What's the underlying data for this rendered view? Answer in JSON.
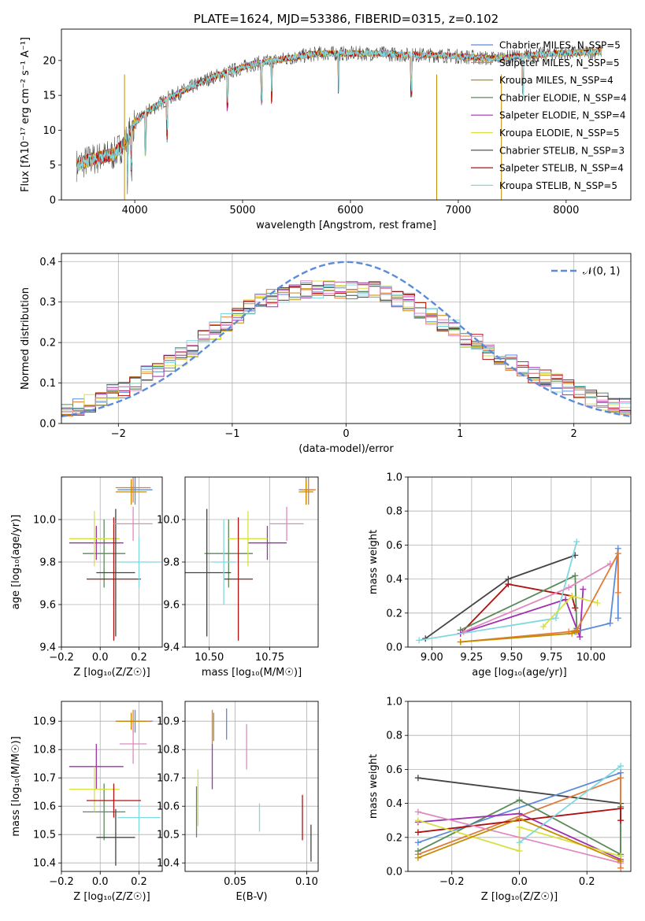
{
  "chart_data": [
    {
      "type": "line",
      "title": "PLATE=1624, MJD=53386, FIBERID=0315, z=0.102",
      "xlabel": "wavelength [Angstrom, rest frame]",
      "ylabel": "Flux [fλ10⁻¹⁷ erg cm⁻² s⁻¹ A⁻¹]",
      "xlim": [
        3320,
        8600
      ],
      "ylim": [
        0,
        24.5
      ],
      "xticks": [
        "4000",
        "5000",
        "6000",
        "7000",
        "8000"
      ],
      "yticks": [
        "0",
        "5",
        "10",
        "15",
        "20"
      ],
      "legend": "right",
      "series": [
        {
          "name": "Chabrier MILES, N_SSP=5",
          "color": "#5B8BD9"
        },
        {
          "name": "Salpeter MILES, N_SSP=5",
          "color": "#E07B39"
        },
        {
          "name": "Kroupa MILES, N_SSP=4",
          "color": "#C58B00"
        },
        {
          "name": "Chabrier ELODIE, N_SSP=4",
          "color": "#5A8A5A"
        },
        {
          "name": "Salpeter ELODIE, N_SSP=4",
          "color": "#A030B0"
        },
        {
          "name": "Kroupa ELODIE, N_SSP=5",
          "color": "#D8E040"
        },
        {
          "name": "Chabrier STELIB, N_SSP=3",
          "color": "#444444"
        },
        {
          "name": "Salpeter STELIB, N_SSP=4",
          "color": "#B01010"
        },
        {
          "name": "Kroupa STELIB, N_SSP=5",
          "color": "#7FD8E0"
        }
      ],
      "continuum": {
        "x": [
          3460,
          3600,
          3800,
          3900,
          4000,
          4100,
          4300,
          4500,
          4700,
          4900,
          5100,
          5300,
          5500,
          5700,
          5900,
          6100,
          6300,
          6500,
          6700,
          6900,
          7100,
          7300,
          7500,
          7700,
          7900,
          8100,
          8300
        ],
        "y": [
          5.0,
          5.8,
          6.5,
          8.0,
          11.0,
          12.5,
          14.5,
          16.0,
          17.5,
          18.5,
          19.5,
          20.0,
          20.5,
          21.0,
          21.0,
          21.0,
          21.0,
          20.8,
          20.8,
          20.7,
          20.5,
          20.3,
          20.5,
          20.8,
          21.0,
          21.1,
          21.3
        ]
      }
    },
    {
      "type": "histogram",
      "xlabel": "(data-model)/error",
      "ylabel": "Normed distribution",
      "xlim": [
        -2.5,
        2.5
      ],
      "ylim": [
        0,
        0.42
      ],
      "xticks": [
        "−2",
        "−1",
        "0",
        "1",
        "2"
      ],
      "yticks": [
        "0.0",
        "0.1",
        "0.2",
        "0.3",
        "0.4"
      ],
      "legend": "top-right",
      "reference_curve": {
        "name": "𝒩(0, 1)",
        "color": "#5B8BD9"
      },
      "bin_width": 0.1,
      "x_start": -2.5,
      "envelope": [
        0.035,
        0.04,
        0.05,
        0.06,
        0.075,
        0.085,
        0.1,
        0.12,
        0.135,
        0.15,
        0.165,
        0.185,
        0.21,
        0.23,
        0.25,
        0.27,
        0.285,
        0.3,
        0.31,
        0.32,
        0.325,
        0.33,
        0.33,
        0.33,
        0.33,
        0.33,
        0.33,
        0.33,
        0.32,
        0.31,
        0.3,
        0.28,
        0.265,
        0.25,
        0.235,
        0.21,
        0.2,
        0.18,
        0.165,
        0.15,
        0.135,
        0.12,
        0.11,
        0.1,
        0.09,
        0.075,
        0.065,
        0.055,
        0.05,
        0.04
      ]
    },
    {
      "type": "scatter",
      "xlabel": "Z [log₁₀(Z/Z☉)]",
      "ylabel": "age  [log₁₀(age/yr)]",
      "xlim": [
        -0.2,
        0.32
      ],
      "ylim": [
        9.4,
        10.2
      ],
      "xticks": [
        "−0.2",
        "0.0",
        "0.2"
      ],
      "yticks": [
        "9.4",
        "9.6",
        "9.8",
        "10.0"
      ],
      "points": [
        {
          "x": 0.18,
          "y": 10.14,
          "xerr": 0.09,
          "yerr": 0.07,
          "color": "#5B8BD9"
        },
        {
          "x": 0.17,
          "y": 10.15,
          "xerr": 0.09,
          "yerr": 0.07,
          "color": "#E07B39"
        },
        {
          "x": 0.16,
          "y": 10.13,
          "xerr": 0.08,
          "yerr": 0.06,
          "color": "#C58B00"
        },
        {
          "x": 0.02,
          "y": 9.84,
          "xerr": 0.11,
          "yerr": 0.16,
          "color": "#5A8A5A"
        },
        {
          "x": -0.02,
          "y": 9.89,
          "xerr": 0.14,
          "yerr": 0.08,
          "color": "#A030B0"
        },
        {
          "x": -0.03,
          "y": 9.91,
          "xerr": 0.13,
          "yerr": 0.13,
          "color": "#D8E040"
        },
        {
          "x": 0.08,
          "y": 9.75,
          "xerr": 0.1,
          "yerr": 0.3,
          "color": "#444444"
        },
        {
          "x": 0.07,
          "y": 9.72,
          "xerr": 0.14,
          "yerr": 0.29,
          "color": "#B01010"
        },
        {
          "x": 0.2,
          "y": 9.8,
          "xerr": 0.11,
          "yerr": 0.12,
          "color": "#7FD8E0"
        },
        {
          "x": 0.17,
          "y": 9.98,
          "xerr": 0.1,
          "yerr": 0.08,
          "color": "#E088C0"
        }
      ]
    },
    {
      "type": "scatter",
      "xlabel": "mass [log₁₀(M/M☉)]",
      "xlim": [
        10.4,
        10.95
      ],
      "ylim": [
        9.4,
        10.2
      ],
      "xticks": [
        "10.50",
        "10.75"
      ],
      "yticks": [
        "9.4",
        "9.6",
        "9.8",
        "10.0"
      ],
      "points": [
        {
          "x": 10.9,
          "y": 10.14,
          "xerr": 0.03,
          "yerr": 0.07,
          "color": "#5B8BD9"
        },
        {
          "x": 10.91,
          "y": 10.14,
          "xerr": 0.03,
          "yerr": 0.07,
          "color": "#E07B39"
        },
        {
          "x": 10.9,
          "y": 10.13,
          "xerr": 0.03,
          "yerr": 0.06,
          "color": "#C58B00"
        },
        {
          "x": 10.58,
          "y": 9.84,
          "xerr": 0.1,
          "yerr": 0.16,
          "color": "#5A8A5A"
        },
        {
          "x": 10.74,
          "y": 9.89,
          "xerr": 0.08,
          "yerr": 0.08,
          "color": "#A030B0"
        },
        {
          "x": 10.66,
          "y": 9.91,
          "xerr": 0.08,
          "yerr": 0.13,
          "color": "#D8E040"
        },
        {
          "x": 10.49,
          "y": 9.75,
          "xerr": 0.1,
          "yerr": 0.3,
          "color": "#444444"
        },
        {
          "x": 10.62,
          "y": 9.72,
          "xerr": 0.06,
          "yerr": 0.29,
          "color": "#B01010"
        },
        {
          "x": 10.56,
          "y": 9.8,
          "xerr": 0.05,
          "yerr": 0.2,
          "color": "#7FD8E0"
        },
        {
          "x": 10.82,
          "y": 9.98,
          "xerr": 0.07,
          "yerr": 0.08,
          "color": "#E088C0"
        }
      ]
    },
    {
      "type": "line",
      "xlabel": "age  [log₁₀(age/yr)]",
      "ylabel": "mass weight",
      "xlim": [
        8.85,
        10.25
      ],
      "ylim": [
        0,
        1.0
      ],
      "xticks": [
        "9.00",
        "9.25",
        "9.50",
        "9.75",
        "10.00"
      ],
      "yticks": [
        "0.0",
        "0.2",
        "0.4",
        "0.6",
        "0.8",
        "1.0"
      ],
      "series": [
        {
          "color": "#444444",
          "x": [
            8.96,
            9.48,
            9.9
          ],
          "y": [
            0.05,
            0.4,
            0.54
          ]
        },
        {
          "color": "#B01010",
          "x": [
            9.18,
            9.48,
            9.88,
            9.9
          ],
          "y": [
            0.08,
            0.37,
            0.3,
            0.23
          ]
        },
        {
          "color": "#5A8A5A",
          "x": [
            9.18,
            9.9,
            9.91
          ],
          "y": [
            0.1,
            0.42,
            0.11
          ]
        },
        {
          "color": "#A030B0",
          "x": [
            9.18,
            9.84,
            9.93,
            9.95
          ],
          "y": [
            0.08,
            0.28,
            0.06,
            0.34
          ]
        },
        {
          "color": "#7FD8E0",
          "x": [
            8.92,
            9.78,
            9.91
          ],
          "y": [
            0.04,
            0.17,
            0.62
          ]
        },
        {
          "color": "#D8E040",
          "x": [
            9.7,
            9.88,
            10.04
          ],
          "y": [
            0.12,
            0.3,
            0.26
          ]
        },
        {
          "color": "#E088C0",
          "x": [
            9.2,
            9.86,
            10.12
          ],
          "y": [
            0.09,
            0.35,
            0.49
          ]
        },
        {
          "color": "#5B8BD9",
          "x": [
            9.9,
            10.12,
            10.17,
            10.17
          ],
          "y": [
            0.09,
            0.14,
            0.58,
            0.17
          ]
        },
        {
          "color": "#E07B39",
          "x": [
            9.18,
            9.86,
            9.91,
            10.17,
            10.17
          ],
          "y": [
            0.03,
            0.09,
            0.1,
            0.55,
            0.32
          ]
        },
        {
          "color": "#C58B00",
          "x": [
            9.18,
            9.88,
            9.91
          ],
          "y": [
            0.03,
            0.08,
            0.09
          ]
        }
      ]
    },
    {
      "type": "scatter",
      "xlabel": "Z [log₁₀(Z/Z☉)]",
      "ylabel": "mass [log₁₀(M/M☉)]",
      "xlim": [
        -0.2,
        0.32
      ],
      "ylim": [
        10.37,
        10.97
      ],
      "xticks": [
        "−0.2",
        "0.0",
        "0.2"
      ],
      "yticks": [
        "10.4",
        "10.5",
        "10.6",
        "10.7",
        "10.8",
        "10.9"
      ],
      "points": [
        {
          "x": 0.18,
          "y": 10.9,
          "xerr": 0.09,
          "yerr": 0.04,
          "color": "#5B8BD9"
        },
        {
          "x": 0.17,
          "y": 10.9,
          "xerr": 0.09,
          "yerr": 0.04,
          "color": "#E07B39"
        },
        {
          "x": 0.16,
          "y": 10.9,
          "xerr": 0.08,
          "yerr": 0.03,
          "color": "#C58B00"
        },
        {
          "x": 0.02,
          "y": 10.58,
          "xerr": 0.11,
          "yerr": 0.1,
          "color": "#5A8A5A"
        },
        {
          "x": -0.02,
          "y": 10.74,
          "xerr": 0.14,
          "yerr": 0.08,
          "color": "#A030B0"
        },
        {
          "x": -0.03,
          "y": 10.66,
          "xerr": 0.13,
          "yerr": 0.08,
          "color": "#D8E040"
        },
        {
          "x": 0.08,
          "y": 10.49,
          "xerr": 0.1,
          "yerr": 0.1,
          "color": "#444444"
        },
        {
          "x": 0.07,
          "y": 10.62,
          "xerr": 0.14,
          "yerr": 0.06,
          "color": "#B01010"
        },
        {
          "x": 0.2,
          "y": 10.56,
          "xerr": 0.11,
          "yerr": 0.05,
          "color": "#7FD8E0"
        },
        {
          "x": 0.17,
          "y": 10.82,
          "xerr": 0.07,
          "yerr": 0.07,
          "color": "#E088C0"
        }
      ]
    },
    {
      "type": "scatter",
      "xlabel": "E(B-V)",
      "xlim": [
        0.015,
        0.108
      ],
      "ylim": [
        10.37,
        10.97
      ],
      "xticks": [
        "0.05",
        "0.10"
      ],
      "yticks": [
        "10.4",
        "10.5",
        "10.6",
        "10.7",
        "10.8",
        "10.9"
      ],
      "points": [
        {
          "x": 0.044,
          "y": 10.89,
          "yerr": 0.055,
          "color": "#5B8BD9"
        },
        {
          "x": 0.034,
          "y": 10.88,
          "yerr": 0.06,
          "color": "#E07B39"
        },
        {
          "x": 0.035,
          "y": 10.88,
          "yerr": 0.05,
          "color": "#C58B00"
        },
        {
          "x": 0.023,
          "y": 10.58,
          "yerr": 0.09,
          "color": "#5A8A5A"
        },
        {
          "x": 0.034,
          "y": 10.74,
          "yerr": 0.08,
          "color": "#A030B0"
        },
        {
          "x": 0.024,
          "y": 10.63,
          "yerr": 0.1,
          "color": "#D8E040"
        },
        {
          "x": 0.103,
          "y": 10.47,
          "yerr": 0.065,
          "color": "#444444"
        },
        {
          "x": 0.097,
          "y": 10.56,
          "yerr": 0.08,
          "color": "#B01010"
        },
        {
          "x": 0.067,
          "y": 10.56,
          "yerr": 0.05,
          "color": "#7FD8E0"
        },
        {
          "x": 0.058,
          "y": 10.81,
          "yerr": 0.08,
          "color": "#E088C0"
        }
      ]
    },
    {
      "type": "line",
      "xlabel": "Z [log₁₀(Z/Z☉)]",
      "ylabel": "mass weight",
      "xlim": [
        -0.33,
        0.33
      ],
      "ylim": [
        0,
        1.0
      ],
      "xticks": [
        "−0.2",
        "0.0",
        "0.2"
      ],
      "yticks": [
        "0.0",
        "0.2",
        "0.4",
        "0.6",
        "0.8",
        "1.0"
      ],
      "series": [
        {
          "color": "#444444",
          "x": [
            -0.3,
            0.3
          ],
          "y": [
            0.55,
            0.4
          ]
        },
        {
          "color": "#5B8BD9",
          "x": [
            -0.3,
            0.3,
            0.3
          ],
          "y": [
            0.17,
            0.58,
            0.09
          ]
        },
        {
          "color": "#E07B39",
          "x": [
            -0.3,
            0.3,
            0.3
          ],
          "y": [
            0.1,
            0.55,
            0.02
          ]
        },
        {
          "color": "#5A8A5A",
          "x": [
            -0.3,
            0.0,
            0.3,
            0.3
          ],
          "y": [
            0.12,
            0.42,
            0.1,
            0.38
          ]
        },
        {
          "color": "#A030B0",
          "x": [
            -0.3,
            0.0,
            0.3
          ],
          "y": [
            0.29,
            0.34,
            0.07
          ]
        },
        {
          "color": "#B01010",
          "x": [
            -0.3,
            0.3,
            0.3
          ],
          "y": [
            0.23,
            0.37,
            0.3
          ]
        },
        {
          "color": "#D8E040",
          "x": [
            -0.3,
            0.0,
            0.0,
            0.3
          ],
          "y": [
            0.3,
            0.12,
            0.26,
            0.09
          ]
        },
        {
          "color": "#7FD8E0",
          "x": [
            0.0,
            0.3
          ],
          "y": [
            0.17,
            0.62
          ]
        },
        {
          "color": "#E088C0",
          "x": [
            -0.3,
            0.3
          ],
          "y": [
            0.35,
            0.05
          ]
        },
        {
          "color": "#C58B00",
          "x": [
            -0.3,
            0.0,
            0.3
          ],
          "y": [
            0.08,
            0.31,
            0.06
          ]
        }
      ]
    }
  ]
}
